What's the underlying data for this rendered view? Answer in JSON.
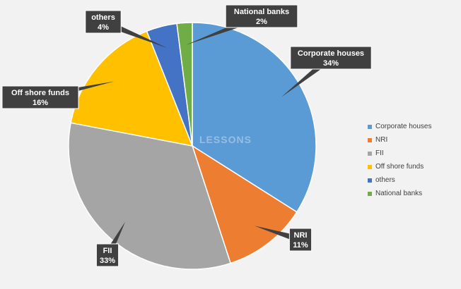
{
  "chart_data": {
    "type": "pie",
    "categories": [
      "Corporate houses",
      "NRI",
      "FII",
      "Off shore funds",
      "others",
      "National banks"
    ],
    "values": [
      34,
      11,
      33,
      16,
      4,
      2
    ],
    "value_labels": [
      "34%",
      "11%",
      "33%",
      "16%",
      "4%",
      "2%"
    ],
    "colors": [
      "#5b9bd5",
      "#ed7d31",
      "#a5a5a5",
      "#ffc000",
      "#4472c4",
      "#70ad47"
    ],
    "legend_position": "right"
  },
  "watermark": "LESSONS"
}
